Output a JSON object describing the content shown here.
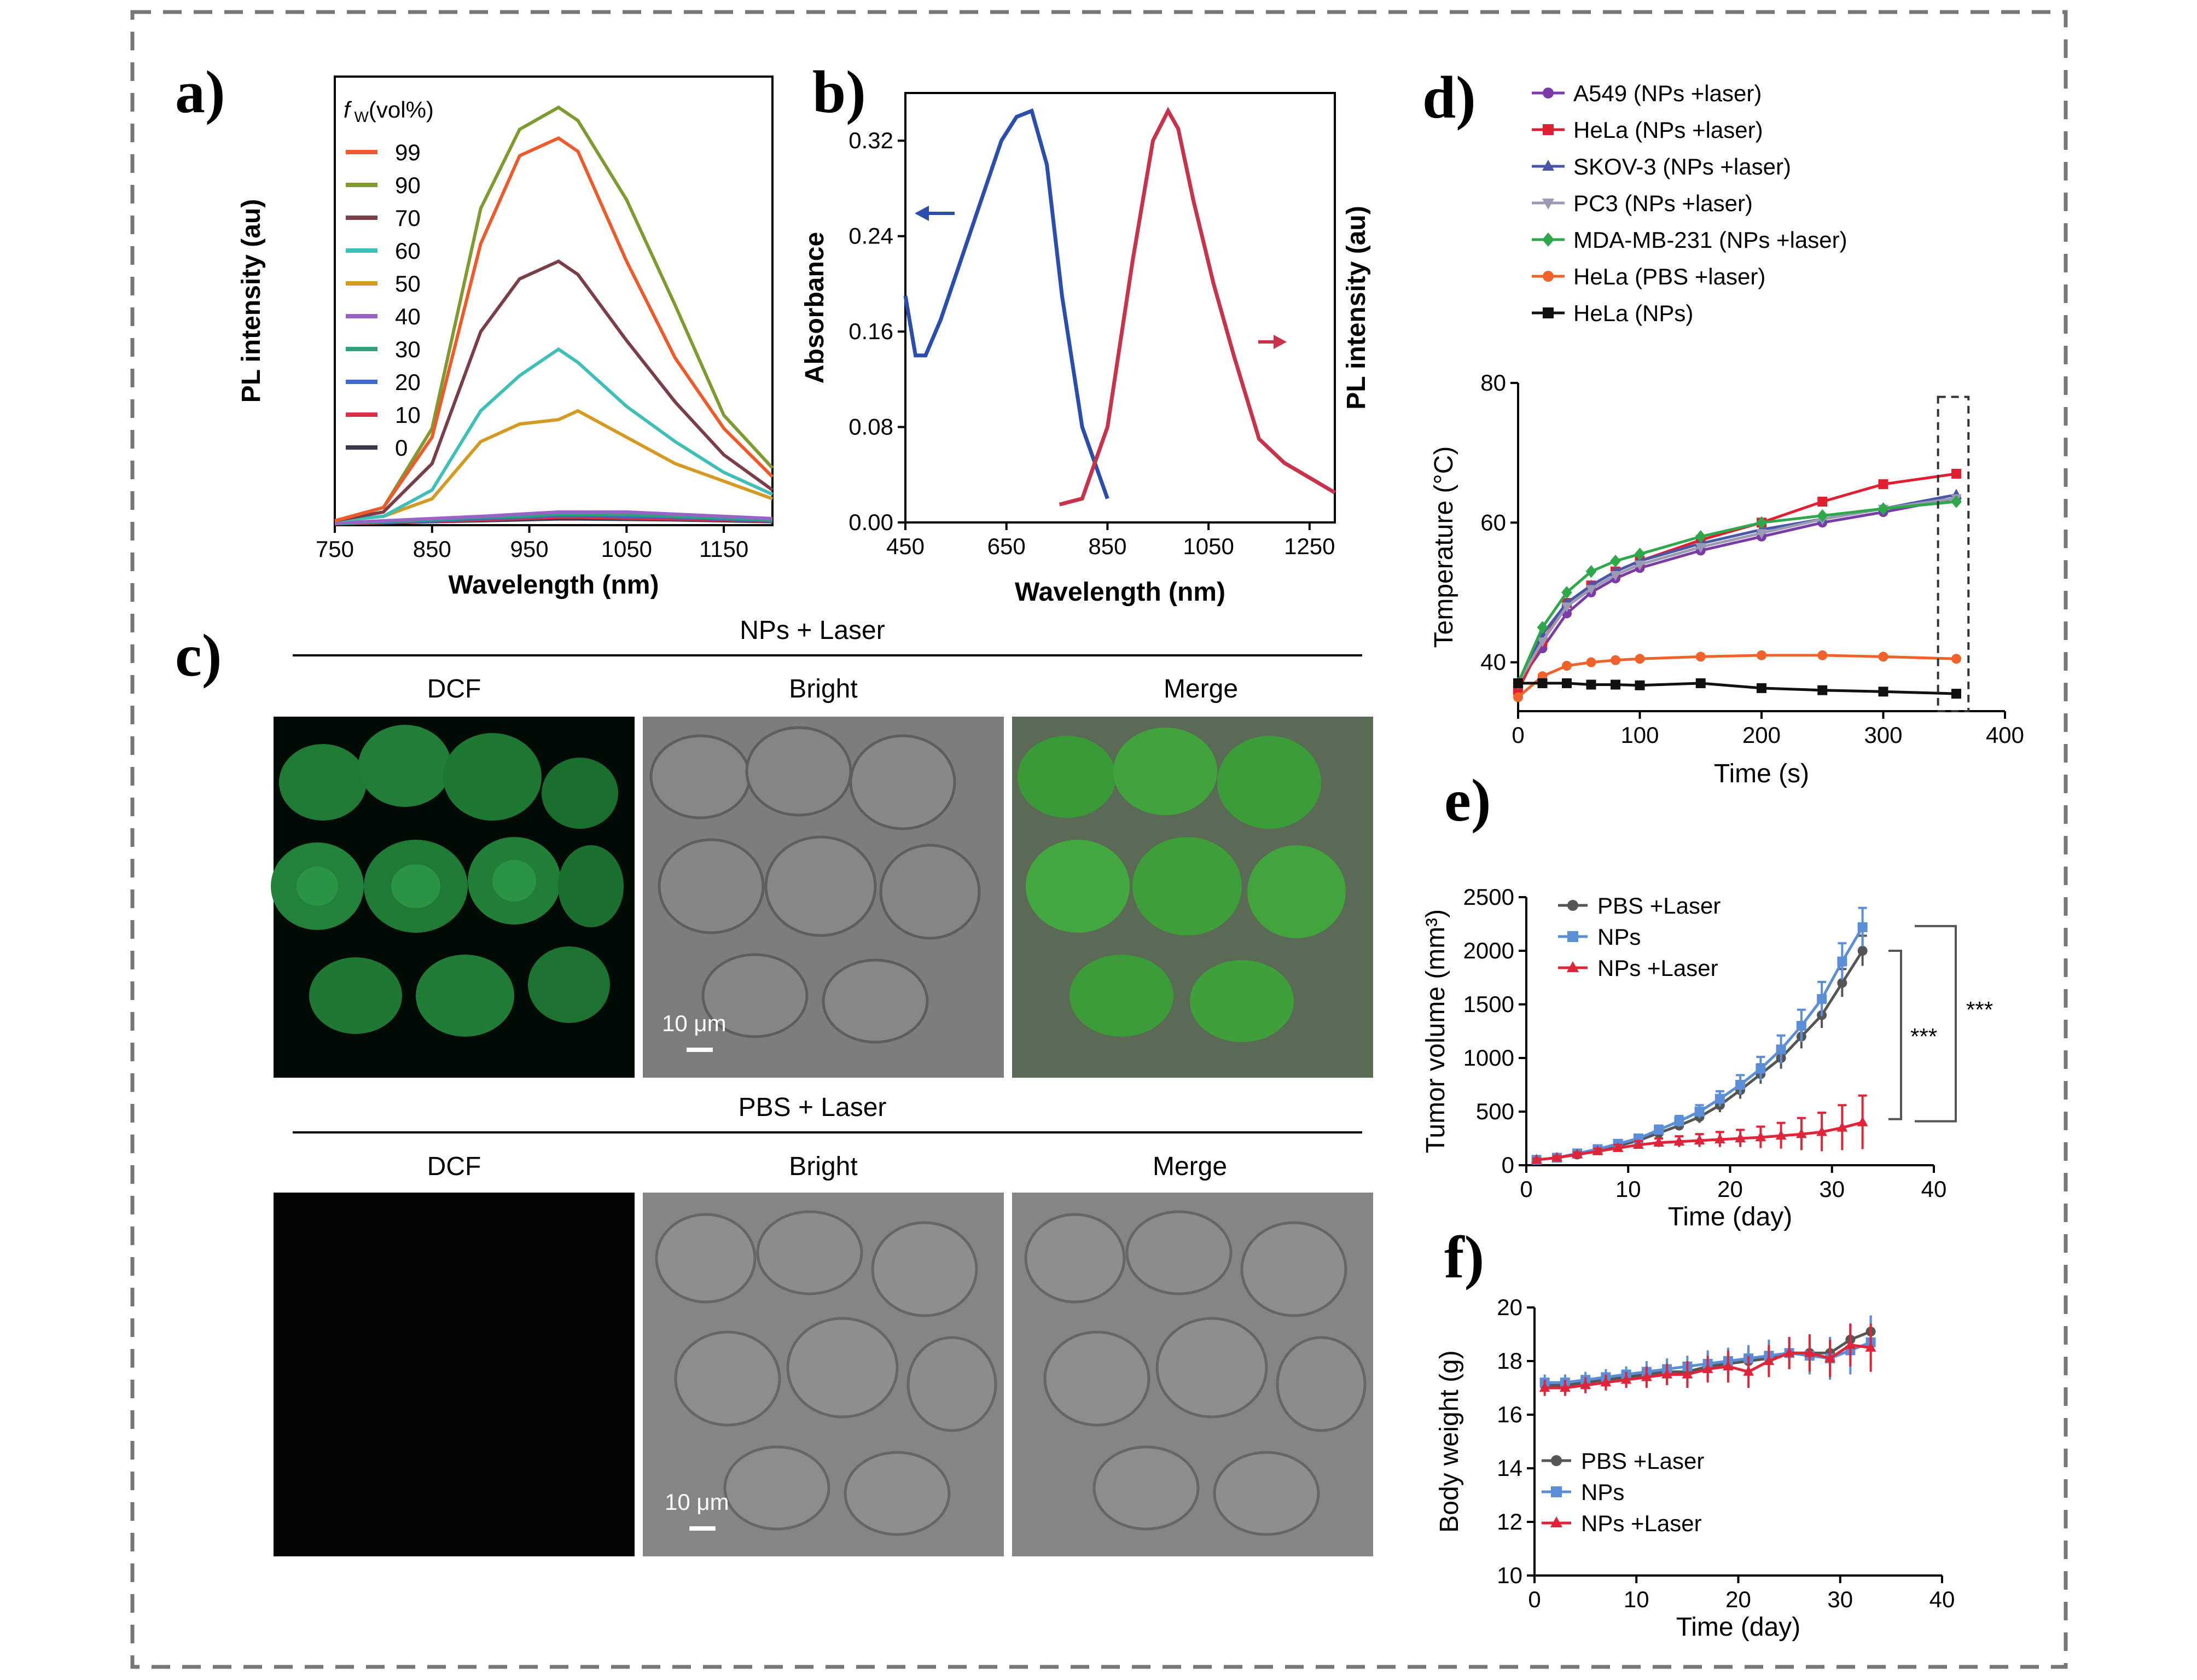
{
  "panel_labels": {
    "a": "a)",
    "b": "b)",
    "c": "c)",
    "d": "d)",
    "e": "e)",
    "f": "f)"
  },
  "micro": {
    "section_top_title": "NPs + Laser",
    "section_bottom_title": "PBS + Laser",
    "col1": "DCF",
    "col2": "Bright",
    "col3": "Merge",
    "scale_bar": "10 μm",
    "colors": {
      "dcf_green": "#1e8a3a",
      "merge_green": "#3ba23a",
      "bright_gray": "#8a8a8a",
      "black": "#050505"
    }
  },
  "chart_data": [
    {
      "id": "a",
      "type": "line",
      "xlabel": "Wavelength (nm)",
      "ylabel": "PL intensity (au)",
      "xlim": [
        750,
        1200
      ],
      "xticks": [
        750,
        850,
        950,
        1050,
        1150
      ],
      "yticks_shown": false,
      "legend_title_italic": "f",
      "legend_title_sub": "W",
      "legend_title_rest": "(vol%)",
      "x": [
        750,
        800,
        850,
        900,
        940,
        980,
        1000,
        1050,
        1100,
        1150,
        1200
      ],
      "series": [
        {
          "name": "99",
          "color": "#ee5a2a",
          "values": [
            0.01,
            0.04,
            0.2,
            0.64,
            0.84,
            0.88,
            0.85,
            0.6,
            0.38,
            0.22,
            0.11
          ]
        },
        {
          "name": "90",
          "color": "#7f9a2f",
          "values": [
            0.01,
            0.04,
            0.22,
            0.72,
            0.9,
            0.95,
            0.92,
            0.74,
            0.5,
            0.25,
            0.13
          ]
        },
        {
          "name": "70",
          "color": "#7a3e48",
          "values": [
            0.01,
            0.03,
            0.14,
            0.44,
            0.56,
            0.6,
            0.57,
            0.42,
            0.28,
            0.16,
            0.08
          ]
        },
        {
          "name": "60",
          "color": "#3fbfb8",
          "values": [
            0.01,
            0.02,
            0.08,
            0.26,
            0.34,
            0.4,
            0.37,
            0.27,
            0.19,
            0.12,
            0.07
          ]
        },
        {
          "name": "50",
          "color": "#d49a22",
          "values": [
            0.01,
            0.02,
            0.06,
            0.19,
            0.23,
            0.24,
            0.26,
            0.2,
            0.14,
            0.1,
            0.06
          ]
        },
        {
          "name": "40",
          "color": "#9a62c8",
          "values": [
            0.005,
            0.01,
            0.015,
            0.02,
            0.025,
            0.03,
            0.03,
            0.03,
            0.025,
            0.02,
            0.015
          ]
        },
        {
          "name": "30",
          "color": "#2ea37a",
          "values": [
            0.004,
            0.008,
            0.012,
            0.018,
            0.02,
            0.025,
            0.025,
            0.024,
            0.02,
            0.016,
            0.012
          ]
        },
        {
          "name": "20",
          "color": "#3a6bc8",
          "values": [
            0.004,
            0.007,
            0.01,
            0.015,
            0.018,
            0.022,
            0.022,
            0.02,
            0.018,
            0.014,
            0.01
          ]
        },
        {
          "name": "10",
          "color": "#d8304a",
          "values": [
            0.003,
            0.006,
            0.009,
            0.012,
            0.015,
            0.018,
            0.018,
            0.016,
            0.014,
            0.012,
            0.009
          ]
        },
        {
          "name": "0",
          "color": "#3a3a4a",
          "values": [
            0.003,
            0.005,
            0.008,
            0.01,
            0.012,
            0.014,
            0.014,
            0.013,
            0.012,
            0.01,
            0.008
          ]
        }
      ]
    },
    {
      "id": "b",
      "type": "line",
      "xlabel": "Wavelength (nm)",
      "ylabel_left": "Absorbance",
      "ylabel_right": "PL intensity (au)",
      "xlim": [
        450,
        1300
      ],
      "ylim": [
        0,
        0.36
      ],
      "xticks": [
        450,
        650,
        850,
        1050,
        1250
      ],
      "yticks": [
        0.0,
        0.08,
        0.16,
        0.24,
        0.32
      ],
      "series": [
        {
          "name": "absorbance",
          "color": "#2b4eae",
          "x": [
            450,
            470,
            490,
            520,
            560,
            600,
            640,
            670,
            700,
            730,
            760,
            800,
            850
          ],
          "values": [
            0.19,
            0.14,
            0.14,
            0.17,
            0.22,
            0.27,
            0.32,
            0.34,
            0.345,
            0.3,
            0.19,
            0.08,
            0.02
          ]
        },
        {
          "name": "emission",
          "color": "#c8324a",
          "x": [
            755,
            800,
            850,
            900,
            940,
            970,
            990,
            1020,
            1060,
            1100,
            1150,
            1200,
            1260,
            1300
          ],
          "values": [
            0.015,
            0.02,
            0.08,
            0.22,
            0.32,
            0.345,
            0.33,
            0.27,
            0.2,
            0.14,
            0.07,
            0.05,
            0.035,
            0.025
          ]
        }
      ]
    },
    {
      "id": "d",
      "type": "line",
      "xlabel": "Time (s)",
      "ylabel": "Temperature (°C)",
      "xlim": [
        0,
        400
      ],
      "ylim": [
        33,
        80
      ],
      "xticks": [
        0,
        100,
        200,
        300,
        400
      ],
      "yticks": [
        40,
        60,
        80
      ],
      "x": [
        0,
        20,
        40,
        60,
        80,
        100,
        150,
        200,
        250,
        300,
        360
      ],
      "series": [
        {
          "name": "A549 (NPs +laser)",
          "color": "#7a3aa8",
          "marker": "circle",
          "values": [
            37,
            42,
            47,
            50,
            52,
            53.5,
            56,
            58,
            60,
            61.5,
            63.5
          ]
        },
        {
          "name": "HeLa (NPs +laser)",
          "color": "#e02030",
          "marker": "square",
          "values": [
            36,
            43,
            48.5,
            51,
            53,
            54.5,
            57.5,
            60,
            63,
            65.5,
            67
          ]
        },
        {
          "name": "SKOV-3 (NPs +laser)",
          "color": "#4a56a8",
          "marker": "triangle",
          "values": [
            37,
            44,
            48.5,
            51,
            53,
            54.5,
            57,
            59,
            60.5,
            62,
            64
          ]
        },
        {
          "name": "PC3 (NPs +laser)",
          "color": "#9a9ab4",
          "marker": "triangle-down",
          "values": [
            37,
            43,
            48,
            50.5,
            52.5,
            54,
            56.5,
            58.5,
            60.5,
            62,
            63.5
          ]
        },
        {
          "name": "MDA-MB-231 (NPs +laser)",
          "color": "#2ea84a",
          "marker": "diamond",
          "values": [
            37,
            45,
            50,
            53,
            54.5,
            55.5,
            58,
            60,
            61,
            62,
            63
          ]
        },
        {
          "name": "HeLa (PBS +laser)",
          "color": "#f0622a",
          "marker": "circle",
          "values": [
            35,
            38,
            39.5,
            40,
            40.3,
            40.5,
            40.8,
            41,
            41,
            40.8,
            40.5
          ]
        },
        {
          "name": "HeLa (NPs)",
          "color": "#111111",
          "marker": "square",
          "values": [
            37,
            37,
            37,
            36.8,
            36.8,
            36.7,
            37,
            36.3,
            36,
            35.8,
            35.5
          ]
        }
      ]
    },
    {
      "id": "e",
      "type": "line",
      "xlabel": "Time (day)",
      "ylabel": "Tumor volume (mm³)",
      "xlim": [
        0,
        40
      ],
      "ylim": [
        0,
        2500
      ],
      "xticks": [
        0,
        10,
        20,
        30,
        40
      ],
      "yticks": [
        0,
        500,
        1000,
        1500,
        2000,
        2500
      ],
      "significance": [
        "***",
        "***"
      ],
      "x": [
        1,
        3,
        5,
        7,
        9,
        11,
        13,
        15,
        17,
        19,
        21,
        23,
        25,
        27,
        29,
        31,
        33
      ],
      "series": [
        {
          "name": "PBS +Laser",
          "color": "#555555",
          "marker": "circle",
          "values": [
            50,
            70,
            100,
            140,
            180,
            230,
            300,
            370,
            450,
            560,
            700,
            850,
            1000,
            1200,
            1400,
            1700,
            2000
          ],
          "err": [
            10,
            15,
            20,
            25,
            30,
            35,
            40,
            45,
            55,
            65,
            80,
            90,
            100,
            110,
            120,
            130,
            140
          ]
        },
        {
          "name": "NPs",
          "color": "#5a8ed6",
          "marker": "square",
          "values": [
            50,
            70,
            110,
            150,
            200,
            250,
            330,
            410,
            500,
            620,
            750,
            900,
            1080,
            1300,
            1550,
            1900,
            2220
          ],
          "err": [
            10,
            15,
            20,
            25,
            30,
            35,
            40,
            50,
            60,
            70,
            90,
            110,
            130,
            150,
            160,
            170,
            180
          ]
        },
        {
          "name": "NPs +Laser",
          "color": "#e0243a",
          "marker": "triangle",
          "values": [
            50,
            70,
            100,
            130,
            160,
            190,
            210,
            220,
            230,
            240,
            250,
            260,
            275,
            290,
            310,
            350,
            400
          ],
          "err": [
            10,
            15,
            20,
            25,
            30,
            35,
            40,
            50,
            60,
            70,
            80,
            100,
            120,
            150,
            180,
            210,
            250
          ]
        }
      ]
    },
    {
      "id": "f",
      "type": "line",
      "xlabel": "Time (day)",
      "ylabel": "Body weight (g)",
      "xlim": [
        0,
        40
      ],
      "ylim": [
        10,
        20
      ],
      "xticks": [
        0,
        10,
        20,
        30,
        40
      ],
      "yticks": [
        10,
        12,
        14,
        16,
        18,
        20
      ],
      "x": [
        1,
        3,
        5,
        7,
        9,
        11,
        13,
        15,
        17,
        19,
        21,
        23,
        25,
        27,
        29,
        31,
        33
      ],
      "series": [
        {
          "name": "PBS +Laser",
          "color": "#555555",
          "marker": "circle",
          "values": [
            17.1,
            17.1,
            17.2,
            17.3,
            17.4,
            17.5,
            17.6,
            17.6,
            17.8,
            17.9,
            18.0,
            18.1,
            18.3,
            18.3,
            18.3,
            18.8,
            19.1
          ],
          "err": [
            0.3,
            0.3,
            0.3,
            0.3,
            0.3,
            0.3,
            0.4,
            0.4,
            0.5,
            0.5,
            0.5,
            0.5,
            0.5,
            0.6,
            0.6,
            0.6,
            0.6
          ]
        },
        {
          "name": "NPs",
          "color": "#5a8ed6",
          "marker": "square",
          "values": [
            17.2,
            17.2,
            17.3,
            17.4,
            17.5,
            17.6,
            17.7,
            17.8,
            17.9,
            18.0,
            18.1,
            18.2,
            18.3,
            18.2,
            18.1,
            18.4,
            18.7
          ],
          "err": [
            0.3,
            0.3,
            0.3,
            0.3,
            0.3,
            0.4,
            0.4,
            0.4,
            0.5,
            0.5,
            0.5,
            0.6,
            0.6,
            0.7,
            0.8,
            0.9,
            1.0
          ]
        },
        {
          "name": "NPs +Laser",
          "color": "#e0243a",
          "marker": "triangle",
          "values": [
            17.0,
            17.0,
            17.1,
            17.2,
            17.3,
            17.4,
            17.5,
            17.5,
            17.7,
            17.8,
            17.6,
            18.0,
            18.3,
            18.3,
            18.1,
            18.6,
            18.5
          ],
          "err": [
            0.3,
            0.3,
            0.3,
            0.3,
            0.3,
            0.4,
            0.4,
            0.5,
            0.5,
            0.6,
            0.6,
            0.6,
            0.6,
            0.7,
            0.7,
            0.8,
            0.9
          ]
        }
      ]
    }
  ]
}
